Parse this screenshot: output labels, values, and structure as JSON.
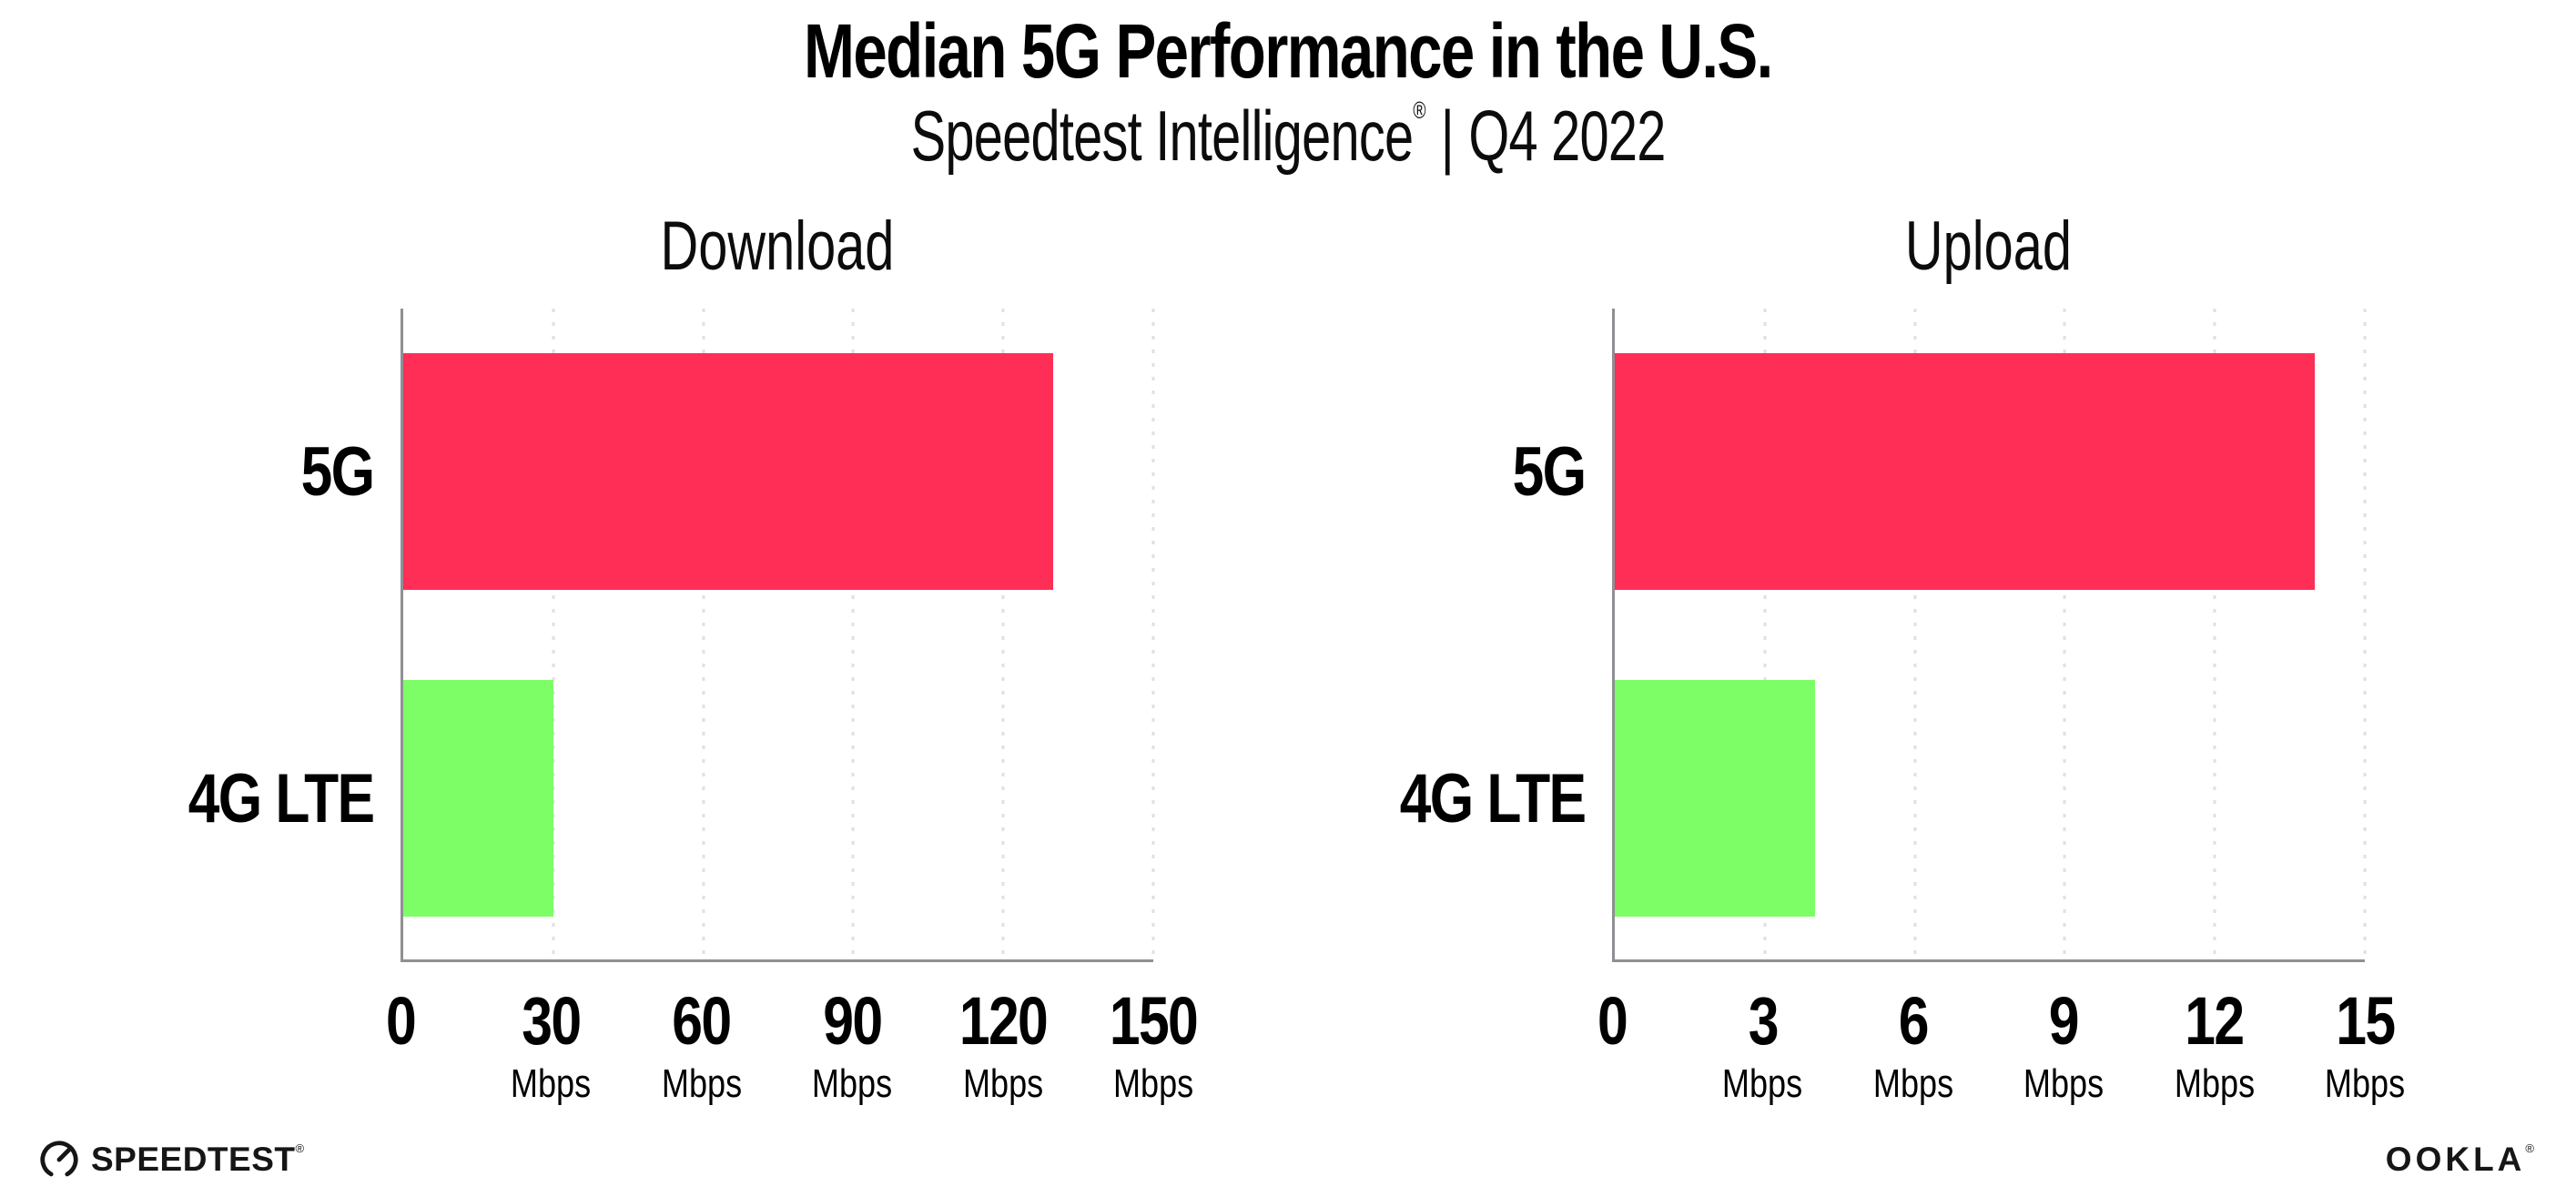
{
  "header": {
    "title": "Median 5G Performance in the U.S.",
    "subtitle_brand": "Speedtest Intelligence",
    "subtitle_registered": "®",
    "subtitle_separator": "|",
    "subtitle_period": "Q4 2022"
  },
  "chart_data": [
    {
      "type": "bar",
      "orientation": "horizontal",
      "title": "Download",
      "categories": [
        "5G",
        "4G LTE"
      ],
      "values": [
        130,
        30
      ],
      "unit": "Mbps",
      "xlim": [
        0,
        150
      ],
      "xticks": [
        0,
        30,
        60,
        90,
        120,
        150
      ],
      "grid": "dotted-vertical",
      "legend": "none",
      "bar_colors": [
        "#FF2E56",
        "#7DFE66"
      ]
    },
    {
      "type": "bar",
      "orientation": "horizontal",
      "title": "Upload",
      "categories": [
        "5G",
        "4G LTE"
      ],
      "values": [
        14,
        4
      ],
      "unit": "Mbps",
      "xlim": [
        0,
        15
      ],
      "xticks": [
        0,
        3,
        6,
        9,
        12,
        15
      ],
      "grid": "dotted-vertical",
      "legend": "none",
      "bar_colors": [
        "#FF2E56",
        "#7DFE66"
      ]
    }
  ],
  "footer": {
    "speedtest_label": "SPEEDTEST",
    "speedtest_registered": "®",
    "ookla_label": "OOKLA",
    "ookla_registered": "®"
  },
  "colors": {
    "bar_5g": "#FF2E56",
    "bar_4g_lte": "#7DFE66",
    "axis": "#8F8F94",
    "gridline": "#DFDFEA",
    "background": "#FFFFFF",
    "text": "#000000"
  }
}
